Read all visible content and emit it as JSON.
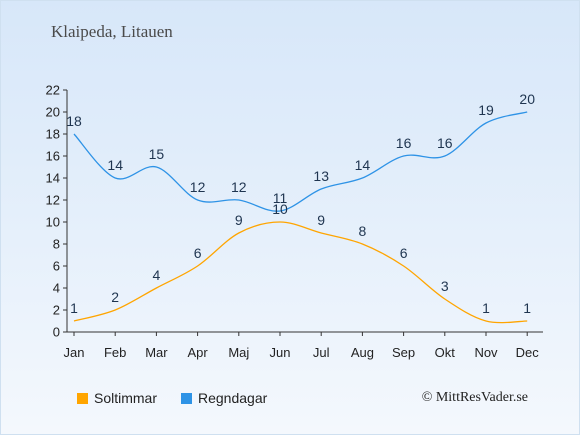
{
  "location": "Klaipeda, Litauen",
  "copyright": "© MittResVader.se",
  "colors": {
    "sun": "#ffa500",
    "rain": "#2e93e6",
    "axis": "#333333"
  },
  "chart_data": {
    "type": "line",
    "categories": [
      "Jan",
      "Feb",
      "Mar",
      "Apr",
      "Maj",
      "Jun",
      "Jul",
      "Aug",
      "Sep",
      "Okt",
      "Nov",
      "Dec"
    ],
    "yticks": [
      0,
      2,
      4,
      6,
      8,
      10,
      12,
      14,
      16,
      18,
      20,
      22
    ],
    "ylim": [
      0,
      22
    ],
    "grid": false,
    "legend_position": "bottom",
    "series": [
      {
        "name": "Soltimmar",
        "color": "#ffa500",
        "values": [
          1,
          2,
          4,
          6,
          9,
          10,
          9,
          8,
          6,
          3,
          1,
          1
        ]
      },
      {
        "name": "Regndagar",
        "color": "#2e93e6",
        "values": [
          18,
          14,
          15,
          12,
          12,
          11,
          13,
          14,
          16,
          16,
          19,
          20
        ]
      }
    ]
  }
}
